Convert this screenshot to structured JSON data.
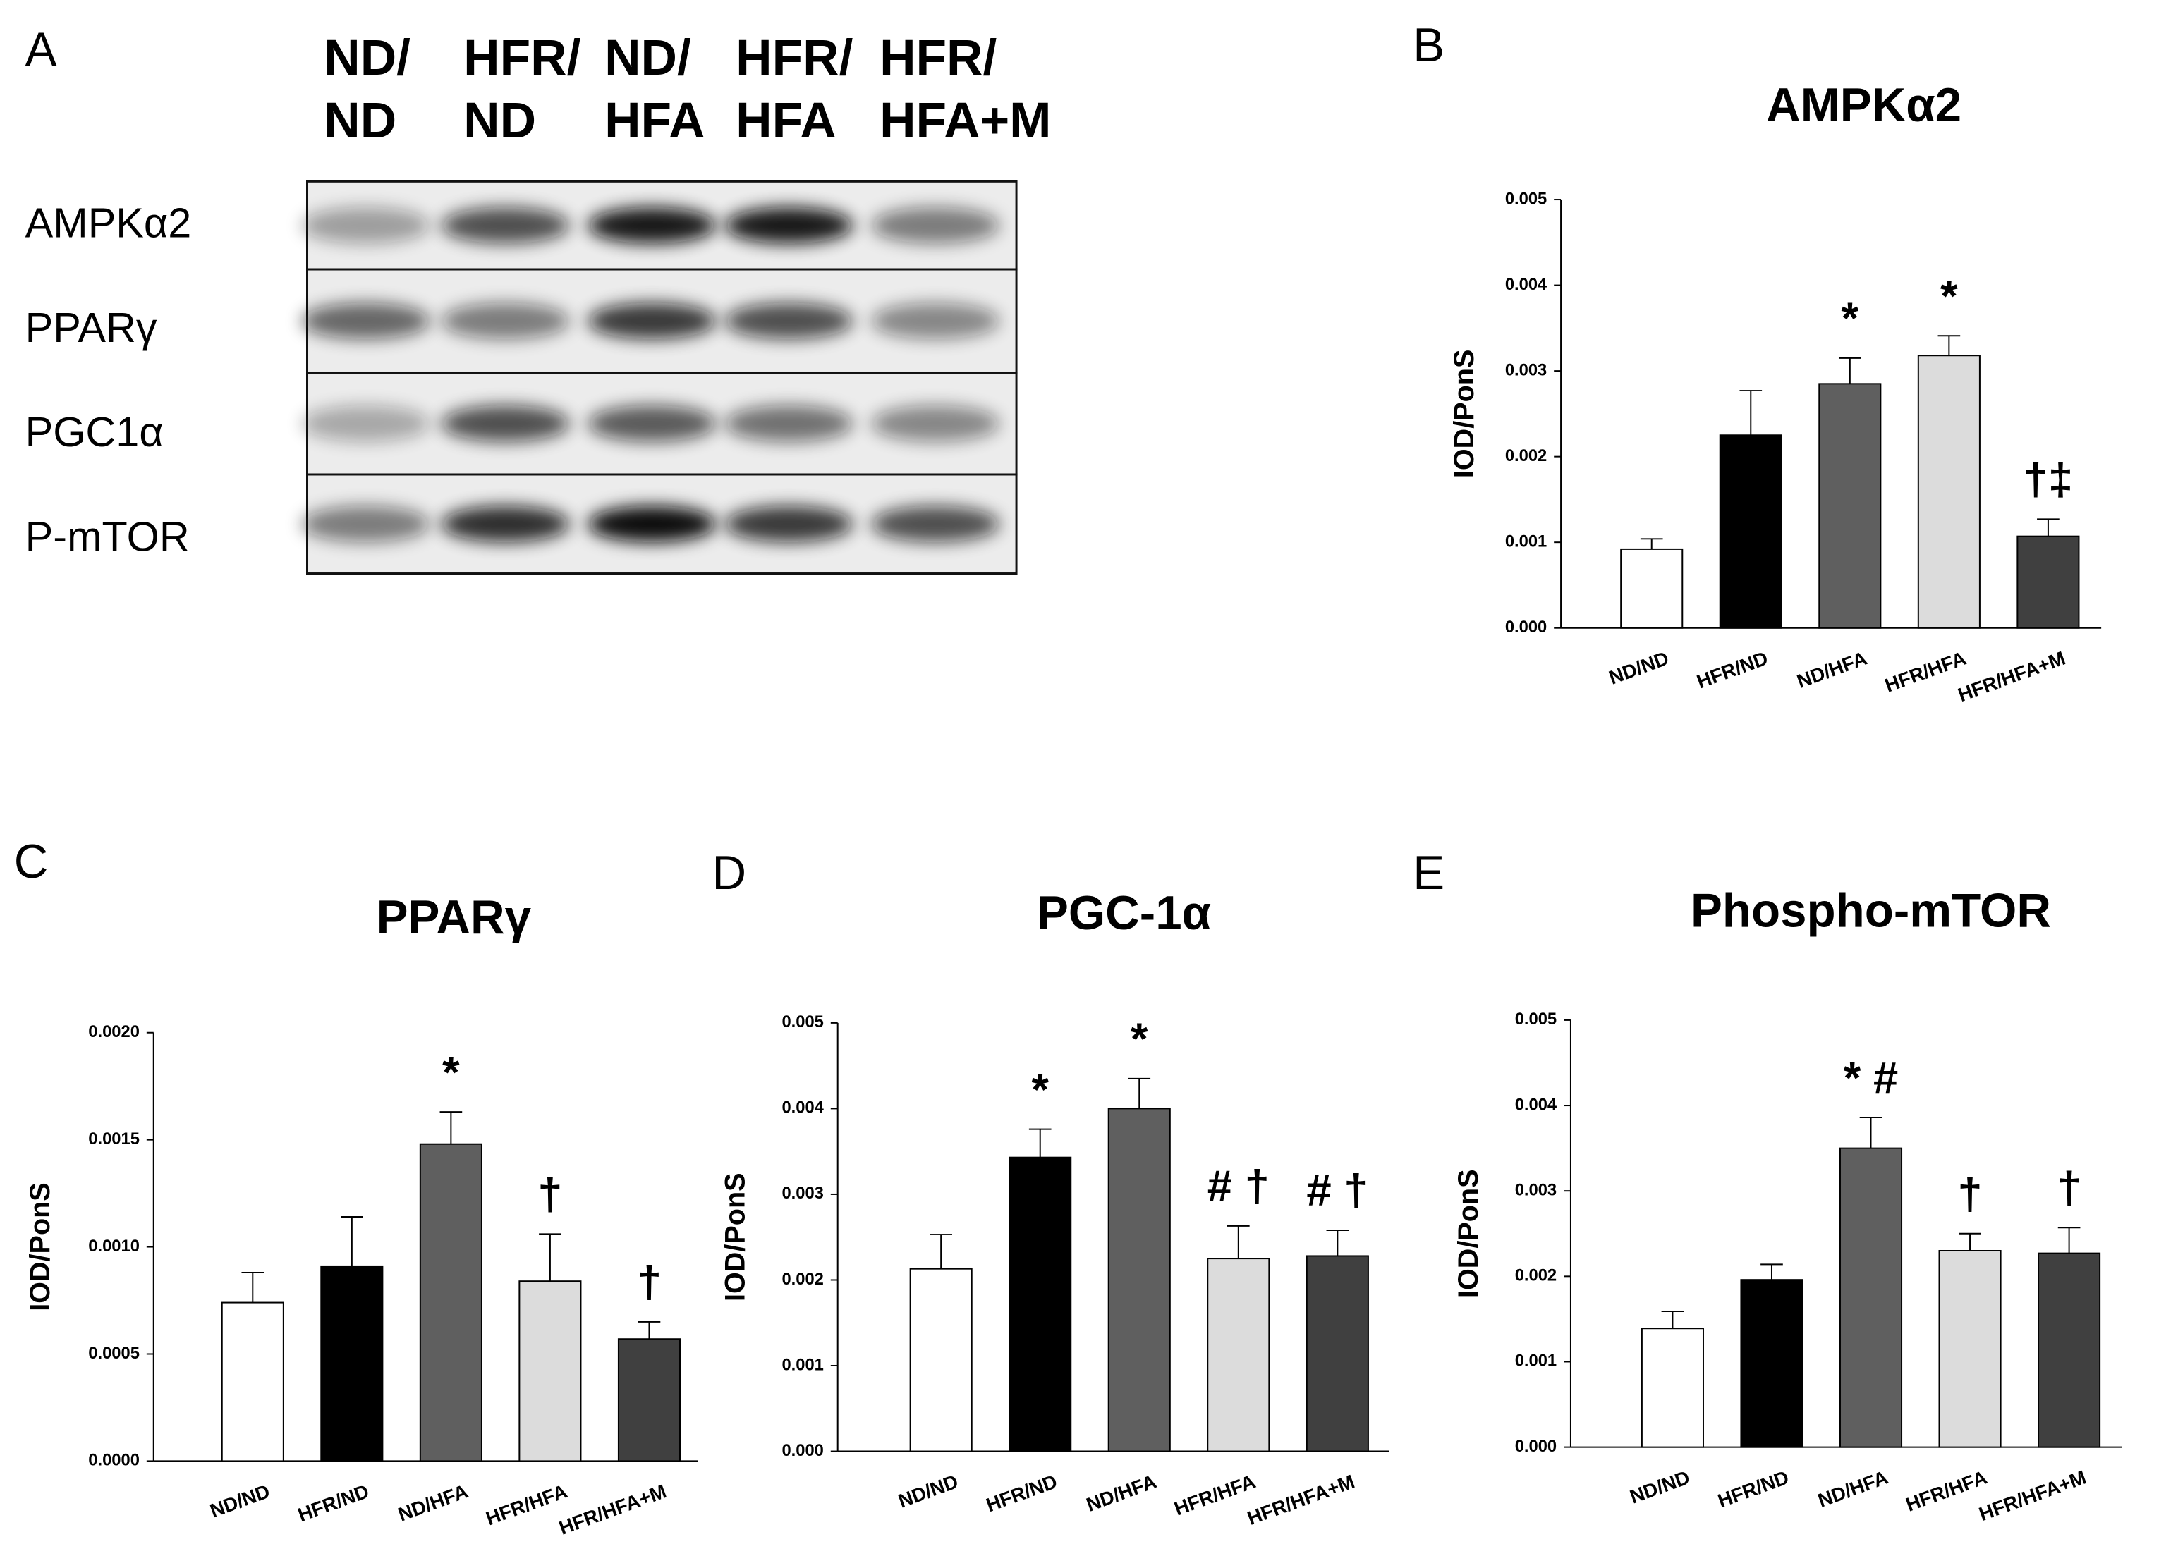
{
  "blot": {
    "panel_label": "A",
    "lane_labels": [
      [
        "ND/",
        "ND"
      ],
      [
        "HFR/",
        "ND"
      ],
      [
        "ND/",
        "HFA"
      ],
      [
        "HFR/",
        "HFA"
      ],
      [
        "HFR/",
        "HFA+M"
      ]
    ],
    "row_labels": [
      "AMPKα2",
      "PPARγ",
      "PGC1α",
      "P-mTOR"
    ]
  },
  "chart_data": [
    {
      "type": "bar",
      "panel_label": "B",
      "title": "AMPKα2",
      "y_label": "IOD/PonS",
      "categories": [
        "ND/ND",
        "HFR/ND",
        "ND/HFA",
        "HFR/HFA",
        "HFR/HFA+M"
      ],
      "values": [
        0.00092,
        0.00225,
        0.00285,
        0.00318,
        0.00107
      ],
      "errors": [
        0.00012,
        0.00052,
        0.0003,
        0.00023,
        0.0002
      ],
      "annotations": [
        null,
        null,
        "*",
        "*",
        "†‡"
      ],
      "colors": [
        "#ffffff",
        "#000000",
        "#5f5f5f",
        "#dcdcdc",
        "#404040"
      ],
      "ylim": [
        0,
        0.005
      ],
      "yticks": [
        {
          "value": 0,
          "label": "0.000"
        },
        {
          "value": 0.001,
          "label": "0.001"
        },
        {
          "value": 0.002,
          "label": "0.002"
        },
        {
          "value": 0.003,
          "label": "0.003"
        },
        {
          "value": 0.004,
          "label": "0.004"
        },
        {
          "value": 0.005,
          "label": "0.005"
        }
      ]
    },
    {
      "type": "bar",
      "panel_label": "C",
      "title": "PPARγ",
      "y_label": "IOD/PonS",
      "categories": [
        "ND/ND",
        "HFR/ND",
        "ND/HFA",
        "HFR/HFA",
        "HFR/HFA+M"
      ],
      "values": [
        0.00074,
        0.00091,
        0.00148,
        0.00084,
        0.00057
      ],
      "errors": [
        0.00014,
        0.00023,
        0.00015,
        0.00022,
        8e-05
      ],
      "annotations": [
        null,
        null,
        "*",
        "†",
        "†"
      ],
      "colors": [
        "#ffffff",
        "#000000",
        "#5f5f5f",
        "#dcdcdc",
        "#404040"
      ],
      "ylim": [
        0,
        0.002
      ],
      "yticks": [
        {
          "value": 0,
          "label": "0.0000"
        },
        {
          "value": 0.0005,
          "label": "0.0005"
        },
        {
          "value": 0.001,
          "label": "0.0010"
        },
        {
          "value": 0.0015,
          "label": "0.0015"
        },
        {
          "value": 0.002,
          "label": "0.0020"
        }
      ]
    },
    {
      "type": "bar",
      "panel_label": "D",
      "title": "PGC-1α",
      "y_label": "IOD/PonS",
      "categories": [
        "ND/ND",
        "HFR/ND",
        "ND/HFA",
        "HFR/HFA",
        "HFR/HFA+M"
      ],
      "values": [
        0.00213,
        0.00343,
        0.004,
        0.00225,
        0.00228
      ],
      "errors": [
        0.0004,
        0.00033,
        0.00035,
        0.00038,
        0.0003
      ],
      "annotations": [
        null,
        "*",
        "*",
        "# †",
        "# †"
      ],
      "colors": [
        "#ffffff",
        "#000000",
        "#5f5f5f",
        "#dcdcdc",
        "#404040"
      ],
      "ylim": [
        0,
        0.005
      ],
      "yticks": [
        {
          "value": 0,
          "label": "0.000"
        },
        {
          "value": 0.001,
          "label": "0.001"
        },
        {
          "value": 0.002,
          "label": "0.002"
        },
        {
          "value": 0.003,
          "label": "0.003"
        },
        {
          "value": 0.004,
          "label": "0.004"
        },
        {
          "value": 0.005,
          "label": "0.005"
        }
      ]
    },
    {
      "type": "bar",
      "panel_label": "E",
      "title": "Phospho-mTOR",
      "y_label": "IOD/PonS",
      "categories": [
        "ND/ND",
        "HFR/ND",
        "ND/HFA",
        "HFR/HFA",
        "HFR/HFA+M"
      ],
      "values": [
        0.00139,
        0.00196,
        0.0035,
        0.0023,
        0.00227
      ],
      "errors": [
        0.0002,
        0.00018,
        0.00036,
        0.0002,
        0.0003
      ],
      "annotations": [
        null,
        null,
        "* #",
        "†",
        "†"
      ],
      "colors": [
        "#ffffff",
        "#000000",
        "#5f5f5f",
        "#dcdcdc",
        "#404040"
      ],
      "ylim": [
        0,
        0.005
      ],
      "yticks": [
        {
          "value": 0,
          "label": "0.000"
        },
        {
          "value": 0.001,
          "label": "0.001"
        },
        {
          "value": 0.002,
          "label": "0.002"
        },
        {
          "value": 0.003,
          "label": "0.003"
        },
        {
          "value": 0.004,
          "label": "0.004"
        },
        {
          "value": 0.005,
          "label": "0.005"
        }
      ]
    }
  ]
}
